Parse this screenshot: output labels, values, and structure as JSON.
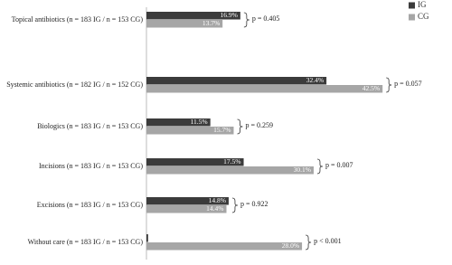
{
  "chart_data": {
    "type": "bar",
    "orientation": "horizontal",
    "categories": [
      "Topical antibiotics (n = 183 IG / n = 153 CG)",
      "Systemic antibiotics (n = 182 IG / n = 152 CG)",
      "Biologics (n = 183 IG / n = 153 CG)",
      "Incisions (n = 183 IG / n = 153 CG)",
      "Excisions (n = 183 IG / n = 153 CG)",
      "Without care (n = 183 IG / n = 153 CG)"
    ],
    "series": [
      {
        "name": "IG",
        "color": "#3b3b3b",
        "values": [
          16.9,
          32.4,
          11.5,
          17.5,
          14.8,
          0.3
        ],
        "value_labels": [
          "16.9%",
          "32.4%",
          "11.5%",
          "17.5%",
          "14.8%",
          null
        ]
      },
      {
        "name": "CG",
        "color": "#a6a6a6",
        "values": [
          13.7,
          42.5,
          15.7,
          30.1,
          14.4,
          28.0
        ],
        "value_labels": [
          "13.7%",
          "42.5%",
          "15.7%",
          "30.1%",
          "14.4%",
          "28.0%"
        ]
      }
    ],
    "annotations": [
      "p = 0.405",
      "p = 0.057",
      "p = 0.259",
      "p = 0.007",
      "p = 0.922",
      "p < 0.001"
    ],
    "xlim": [
      0,
      55
    ],
    "legend": "top-right"
  }
}
